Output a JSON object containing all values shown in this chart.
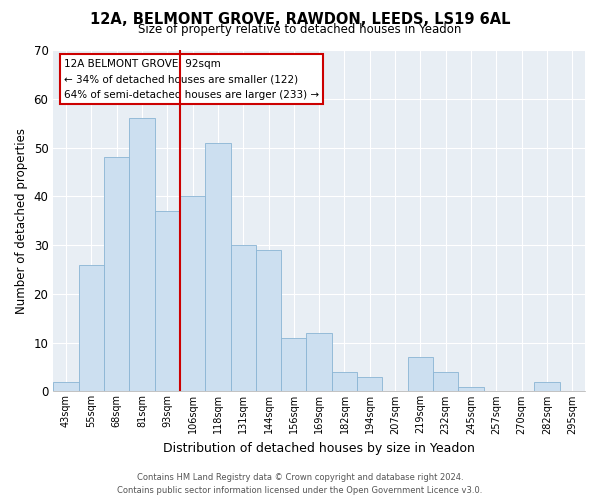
{
  "title": "12A, BELMONT GROVE, RAWDON, LEEDS, LS19 6AL",
  "subtitle": "Size of property relative to detached houses in Yeadon",
  "xlabel": "Distribution of detached houses by size in Yeadon",
  "ylabel": "Number of detached properties",
  "categories": [
    "43sqm",
    "55sqm",
    "68sqm",
    "81sqm",
    "93sqm",
    "106sqm",
    "118sqm",
    "131sqm",
    "144sqm",
    "156sqm",
    "169sqm",
    "182sqm",
    "194sqm",
    "207sqm",
    "219sqm",
    "232sqm",
    "245sqm",
    "257sqm",
    "270sqm",
    "282sqm",
    "295sqm"
  ],
  "values": [
    2,
    26,
    48,
    56,
    37,
    40,
    51,
    30,
    29,
    11,
    12,
    4,
    3,
    0,
    7,
    4,
    1,
    0,
    0,
    2,
    0
  ],
  "bar_color": "#ccdff0",
  "bar_edge_color": "#8ab4d4",
  "highlight_x": "93sqm",
  "highlight_line_color": "#cc0000",
  "ylim": [
    0,
    70
  ],
  "yticks": [
    0,
    10,
    20,
    30,
    40,
    50,
    60,
    70
  ],
  "annotation_title": "12A BELMONT GROVE: 92sqm",
  "annotation_line1": "← 34% of detached houses are smaller (122)",
  "annotation_line2": "64% of semi-detached houses are larger (233) →",
  "annotation_box_color": "#ffffff",
  "annotation_box_edge": "#cc0000",
  "footer_line1": "Contains HM Land Registry data © Crown copyright and database right 2024.",
  "footer_line2": "Contains public sector information licensed under the Open Government Licence v3.0.",
  "background_color": "#ffffff",
  "plot_bg_color": "#e8eef4",
  "grid_color": "#ffffff"
}
